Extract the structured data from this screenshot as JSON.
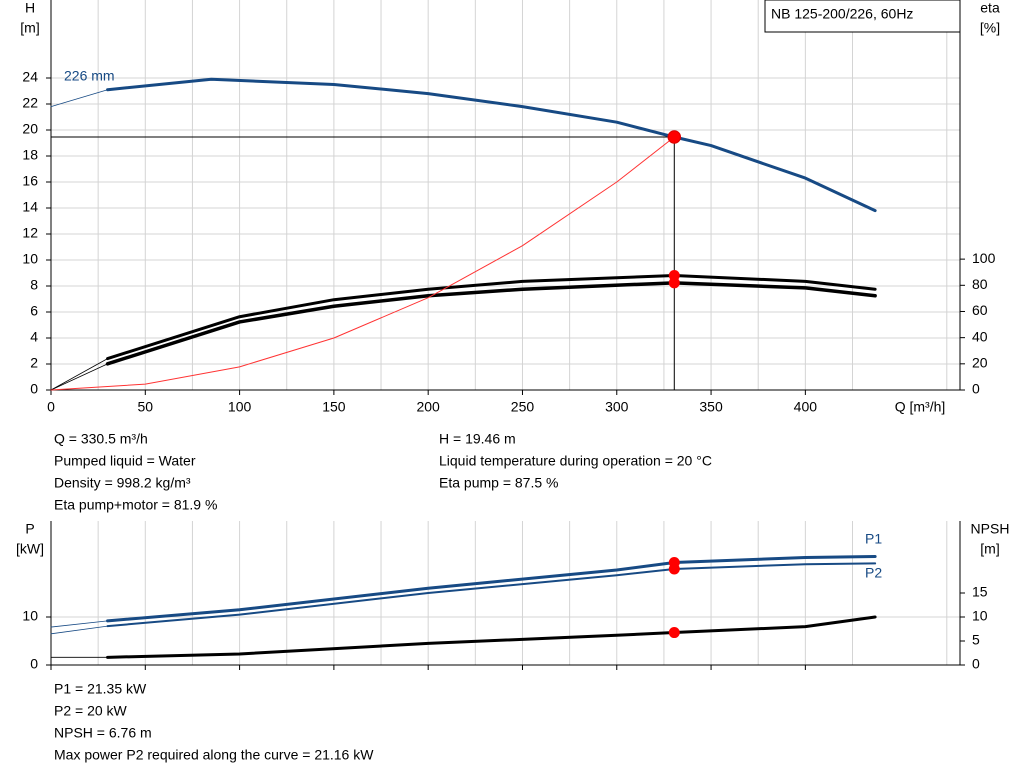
{
  "chart_data": [
    {
      "type": "line",
      "title": "NB 125-200/226, 60Hz",
      "ylabel": [
        "H",
        "[m]"
      ],
      "y2label": [
        "eta",
        "[%]"
      ],
      "xlabel": "Q [m³/h]",
      "xlim": [
        0,
        482
      ],
      "xticks": [
        0,
        50,
        100,
        150,
        200,
        250,
        300,
        350,
        400
      ],
      "ylim": [
        0,
        30
      ],
      "yticks": [
        0,
        2,
        4,
        6,
        8,
        10,
        12,
        14,
        16,
        18,
        20,
        22,
        24
      ],
      "y2lim": [
        0,
        298
      ],
      "y2ticks": [
        0,
        20,
        40,
        60,
        80,
        100
      ],
      "grid": true,
      "operating_point": {
        "x": 330.5,
        "y": 19.46
      },
      "series": [
        {
          "name": "226 mm",
          "color": "#174a84",
          "line_width": 3,
          "start_thin": true,
          "axis": "y",
          "x": [
            0,
            30,
            85,
            150,
            200,
            250,
            300,
            330.5,
            350,
            400,
            437
          ],
          "values": [
            21.8,
            23.1,
            23.9,
            23.5,
            22.8,
            21.8,
            20.6,
            19.46,
            18.8,
            16.3,
            13.8
          ]
        },
        {
          "color": "#000000",
          "line_width": 3,
          "start_thin": true,
          "axis": "y2",
          "x": [
            0,
            30,
            100,
            150,
            200,
            250,
            330.5,
            400,
            437
          ],
          "values": [
            0,
            24,
            56,
            69,
            77,
            83,
            87.5,
            83,
            77
          ]
        },
        {
          "color": "#000000",
          "line_width": 3.5,
          "start_thin": true,
          "axis": "y2",
          "x": [
            0,
            30,
            100,
            150,
            200,
            250,
            330.5,
            400,
            437
          ],
          "values": [
            0,
            20,
            52,
            64,
            72,
            77,
            81.9,
            78,
            72
          ]
        },
        {
          "color": "#ff3333",
          "line_width": 1,
          "start_thin": false,
          "axis": "y",
          "x": [
            0,
            50,
            100,
            150,
            200,
            250,
            300,
            330.5
          ],
          "values": [
            0,
            0.45,
            1.78,
            4.0,
            7.1,
            11.1,
            16.0,
            19.46
          ]
        }
      ]
    },
    {
      "type": "line",
      "ylabel": [
        "P",
        "[kW]"
      ],
      "y2label": [
        "NPSH",
        "[m]"
      ],
      "xlim": [
        0,
        482
      ],
      "xticks": [
        0,
        50,
        100,
        150,
        200,
        250,
        300,
        350,
        400
      ],
      "ylim": [
        0,
        30
      ],
      "yticks": [
        0,
        10
      ],
      "y2lim": [
        0,
        30
      ],
      "y2ticks": [
        0,
        5,
        10,
        15
      ],
      "grid": true,
      "operating_x": 330.5,
      "series": [
        {
          "name": "P1",
          "color": "#174a84",
          "line_width": 3,
          "start_thin": true,
          "axis": "y",
          "x": [
            0,
            30,
            100,
            200,
            300,
            330.5,
            400,
            437
          ],
          "values": [
            7.9,
            9.2,
            11.5,
            16,
            19.8,
            21.35,
            22.4,
            22.6
          ]
        },
        {
          "name": "P2",
          "color": "#174a84",
          "line_width": 2,
          "start_thin": true,
          "axis": "y",
          "x": [
            0,
            30,
            100,
            200,
            300,
            330.5,
            400,
            437
          ],
          "values": [
            6.5,
            8.1,
            10.5,
            15,
            18.7,
            20,
            21.0,
            21.16
          ]
        },
        {
          "color": "#000000",
          "line_width": 3,
          "start_thin": true,
          "axis": "y2",
          "x": [
            0,
            30,
            100,
            200,
            300,
            330.5,
            400,
            437
          ],
          "values": [
            1.6,
            1.6,
            2.3,
            4.5,
            6.2,
            6.76,
            8.0,
            10
          ]
        }
      ]
    }
  ],
  "notes": {
    "top_left": [
      "Q = 330.5 m³/h",
      "Pumped liquid = Water",
      "Density = 998.2 kg/m³",
      "Eta pump+motor = 81.9 %"
    ],
    "top_right": [
      "H = 19.46 m",
      "Liquid temperature during operation = 20 °C",
      "Eta pump = 87.5 %"
    ],
    "bottom": [
      "P1 = 21.35 kW",
      "P2 = 20 kW",
      "NPSH = 6.76 m",
      "Max power P2 required along the curve = 21.16 kW"
    ]
  }
}
